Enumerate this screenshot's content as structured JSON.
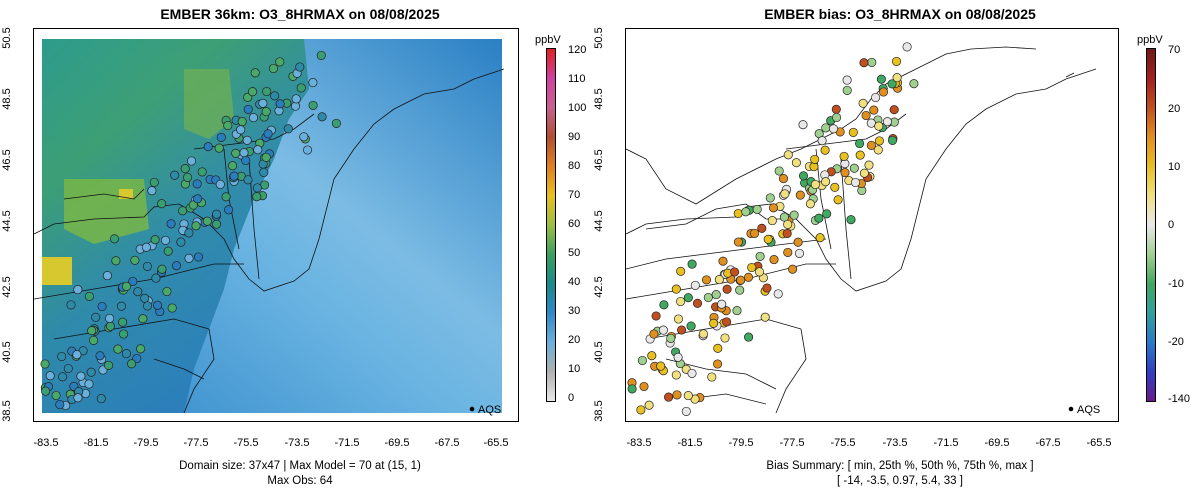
{
  "left": {
    "title": "EMBER 36km: O3_8HRMAX on 08/08/2025",
    "y_ticks": [
      "50.5",
      "48.5",
      "46.5",
      "44.5",
      "42.5",
      "40.5",
      "38.5"
    ],
    "x_ticks": [
      "-83.5",
      "-81.5",
      "-79.5",
      "-77.5",
      "-75.5",
      "-73.5",
      "-71.5",
      "-69.5",
      "-67.5",
      "-65.5"
    ],
    "footer_line1": "Domain size: 37x47 | Max Model = 70 at (15, 1)",
    "footer_line2": "Max Obs: 64",
    "legend_label": "AQS",
    "colorbar": {
      "unit": "ppbV",
      "labels": [
        "120",
        "110",
        "100",
        "90",
        "80",
        "70",
        "60",
        "50",
        "40",
        "30",
        "20",
        "10",
        "0"
      ],
      "colors": [
        "#e8e8e8",
        "#b0b0b0",
        "#6ab0dc",
        "#2d8ac8",
        "#1a8a8a",
        "#3aa060",
        "#9cc040",
        "#e8c020",
        "#e08020",
        "#b05030",
        "#c86090",
        "#d040a0",
        "#e02020"
      ]
    }
  },
  "right": {
    "title": "EMBER bias: O3_8HRMAX on 08/08/2025",
    "y_ticks": [
      "50.5",
      "48.5",
      "46.5",
      "44.5",
      "42.5",
      "40.5",
      "38.5"
    ],
    "x_ticks": [
      "-83.5",
      "-81.5",
      "-79.5",
      "-77.5",
      "-75.5",
      "-73.5",
      "-71.5",
      "-69.5",
      "-67.5",
      "-65.5"
    ],
    "footer_line1": "Bias Summary: [ min, 25th %, 50th %, 75th %, max ]",
    "footer_line2": "[ -14,   -3.5,   0.97,   5.4,   33 ]",
    "legend_label": "AQS",
    "colorbar": {
      "unit": "ppbV",
      "labels": [
        "70",
        "20",
        "10",
        "0",
        "-10",
        "-20",
        "-140"
      ],
      "colors": [
        "#6a1a8a",
        "#3040c0",
        "#2a7ac8",
        "#30a0a0",
        "#40a860",
        "#a0d090",
        "#e8e8e8",
        "#f0e080",
        "#e8c020",
        "#e09020",
        "#c05020",
        "#a02020",
        "#701818"
      ]
    }
  }
}
